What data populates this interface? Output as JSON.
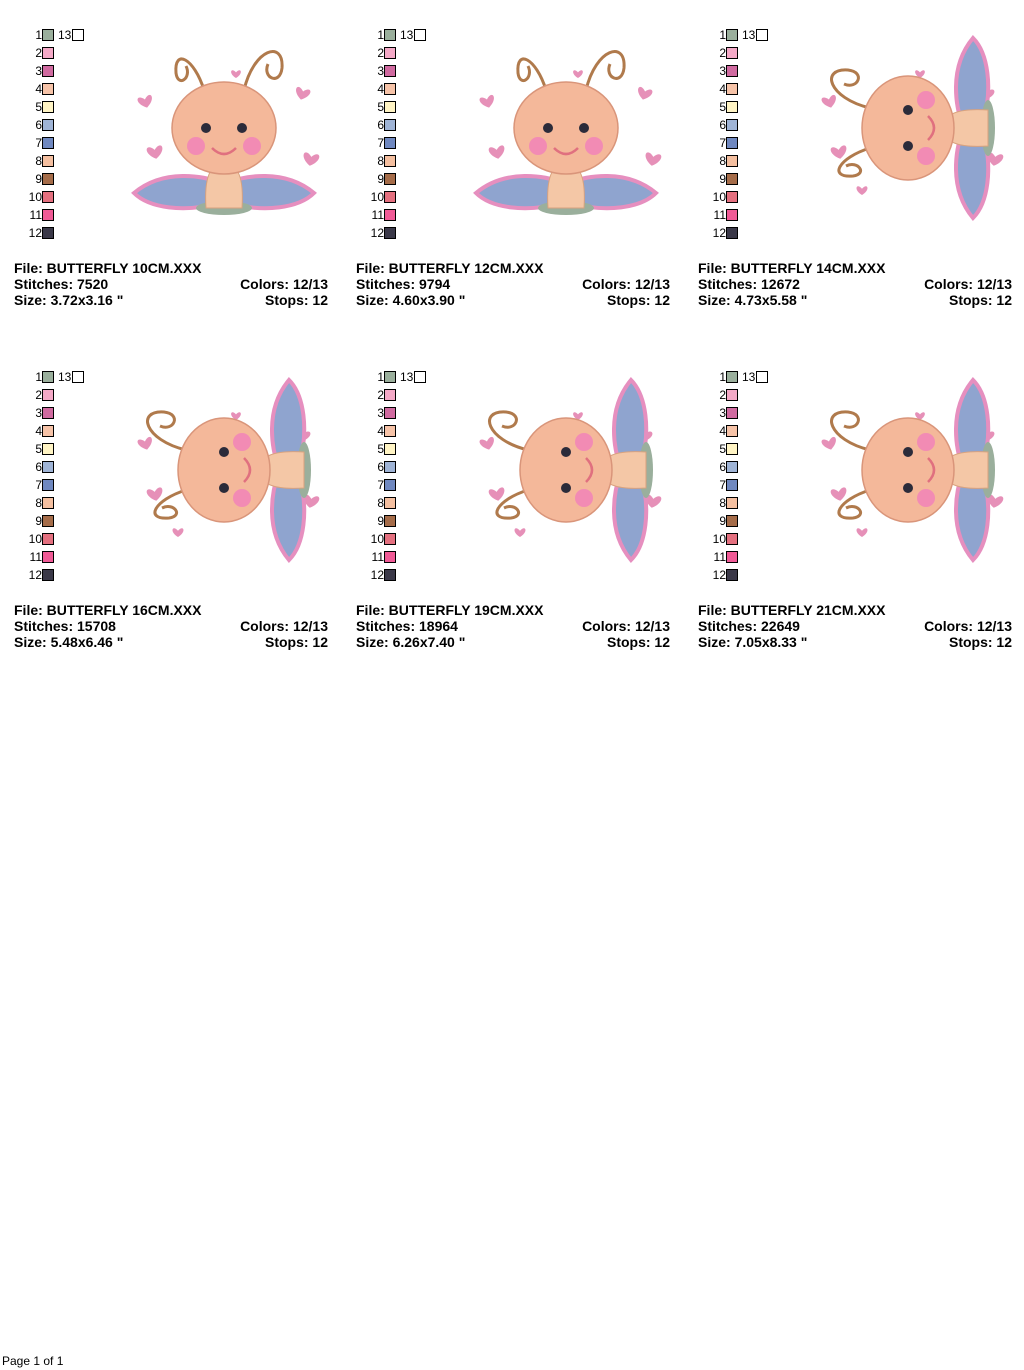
{
  "palette": [
    "#9aaf9c",
    "#f4a9c7",
    "#d06aa0",
    "#f6c3a8",
    "#fff4c4",
    "#9fb4d6",
    "#6f88c0",
    "#f4bfa0",
    "#a56c49",
    "#e4707f",
    "#f05a96",
    "#3a3848",
    "#ffffff"
  ],
  "palette_numbers": [
    "1",
    "2",
    "3",
    "4",
    "5",
    "6",
    "7",
    "8",
    "9",
    "10",
    "11",
    "12",
    "13"
  ],
  "designs": [
    {
      "file": "File: BUTTERFLY 10CM.XXX",
      "stitches": "Stitches: 7520",
      "colors": "Colors: 12/13",
      "size": "Size: 3.72x3.16 \"",
      "stops": "Stops: 12",
      "orientation": "upright"
    },
    {
      "file": "File: BUTTERFLY 12CM.XXX",
      "stitches": "Stitches: 9794",
      "colors": "Colors: 12/13",
      "size": "Size: 4.60x3.90 \"",
      "stops": "Stops: 12",
      "orientation": "upright"
    },
    {
      "file": "File: BUTTERFLY 14CM.XXX",
      "stitches": "Stitches: 12672",
      "colors": "Colors: 12/13",
      "size": "Size: 4.73x5.58 \"",
      "stops": "Stops: 12",
      "orientation": "rotated"
    },
    {
      "file": "File: BUTTERFLY 16CM.XXX",
      "stitches": "Stitches: 15708",
      "colors": "Colors: 12/13",
      "size": "Size: 5.48x6.46 \"",
      "stops": "Stops: 12",
      "orientation": "rotated"
    },
    {
      "file": "File: BUTTERFLY 19CM.XXX",
      "stitches": "Stitches: 18964",
      "colors": "Colors: 12/13",
      "size": "Size: 6.26x7.40 \"",
      "stops": "Stops: 12",
      "orientation": "rotated"
    },
    {
      "file": "File: BUTTERFLY 21CM.XXX",
      "stitches": "Stitches: 22649",
      "colors": "Colors: 12/13",
      "size": "Size: 7.05x8.33 \"",
      "stops": "Stops: 12",
      "orientation": "rotated"
    }
  ],
  "footer": "Page 1 of 1"
}
